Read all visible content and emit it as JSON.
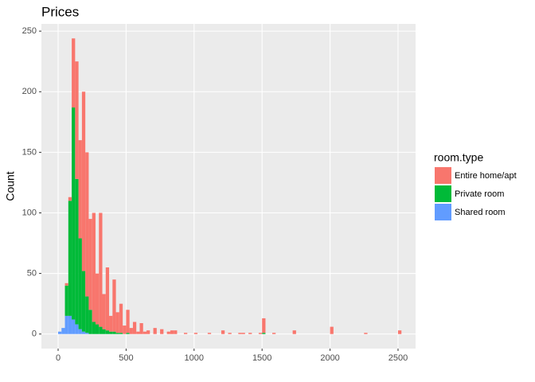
{
  "chart_data": {
    "type": "histogram",
    "title": "Prices",
    "y_label": "Count",
    "legend_title": "room.type",
    "bins": [
      0,
      25,
      50,
      75,
      100,
      125,
      150,
      175,
      200,
      225,
      250,
      275,
      300,
      325,
      350,
      375,
      400,
      425,
      450,
      475,
      500,
      525,
      550,
      575,
      600,
      625,
      650,
      675,
      700,
      725,
      750,
      775,
      800,
      825,
      850,
      875,
      900,
      925,
      950,
      975,
      1000,
      1025,
      1050,
      1075,
      1100,
      1125,
      1150,
      1175,
      1200,
      1225,
      1250,
      1275,
      1300,
      1325,
      1350,
      1375,
      1400,
      1425,
      1450,
      1475,
      1500,
      1525,
      1550,
      1575,
      1600,
      1625,
      1650,
      1675,
      1700,
      1725,
      1750,
      1775,
      1800,
      1825,
      1850,
      1875,
      1900,
      1925,
      1950,
      1975,
      2000,
      2025,
      2050,
      2075,
      2100,
      2125,
      2150,
      2175,
      2200,
      2225,
      2250,
      2275,
      2300,
      2325,
      2350,
      2375,
      2400,
      2425,
      2450,
      2475,
      2500,
      2525
    ],
    "series": [
      {
        "name": "Entire home/apt",
        "color": "#F8766D",
        "values": [
          0,
          0,
          2,
          3,
          57,
          97,
          81,
          148,
          119,
          75,
          90,
          42,
          94,
          29,
          52,
          13,
          43,
          17,
          24,
          7,
          19,
          5,
          10,
          2,
          9,
          2,
          3,
          0,
          5,
          0,
          4,
          0,
          2,
          3,
          3,
          0,
          0,
          1,
          0,
          0,
          1,
          0,
          0,
          0,
          1,
          0,
          0,
          0,
          3,
          0,
          1,
          0,
          0,
          1,
          1,
          0,
          1,
          0,
          0,
          1,
          12,
          0,
          0,
          1,
          0,
          0,
          0,
          0,
          0,
          3,
          0,
          0,
          0,
          0,
          0,
          0,
          0,
          0,
          0,
          0,
          6,
          0,
          0,
          0,
          0,
          0,
          0,
          0,
          0,
          0,
          1,
          0,
          0,
          0,
          0,
          0,
          0,
          0,
          0,
          0,
          3
        ]
      },
      {
        "name": "Private room",
        "color": "#00BA38",
        "values": [
          0,
          0,
          25,
          95,
          175,
          120,
          75,
          50,
          30,
          20,
          10,
          8,
          6,
          4,
          3,
          2,
          2,
          1,
          1,
          0,
          1,
          0,
          0,
          0,
          0,
          0,
          0,
          0,
          0,
          0,
          0,
          0,
          0,
          0,
          0,
          0,
          0,
          0,
          0,
          0,
          0,
          0,
          0,
          0,
          0,
          0,
          0,
          0,
          0,
          0,
          0,
          0,
          0,
          0,
          0,
          0,
          0,
          0,
          0,
          0,
          1,
          0,
          0,
          0,
          0,
          0,
          0,
          0,
          0,
          0,
          0,
          0,
          0,
          0,
          0,
          0,
          0,
          0,
          0,
          0,
          0,
          0,
          0,
          0,
          0,
          0,
          0,
          0,
          0,
          0,
          0,
          0,
          0,
          0,
          0,
          0,
          0,
          0,
          0,
          0,
          0
        ]
      },
      {
        "name": "Shared room",
        "color": "#619CFF",
        "values": [
          2,
          5,
          15,
          15,
          12,
          8,
          4,
          2,
          1,
          0,
          0,
          0,
          0,
          0,
          0,
          0,
          0,
          0,
          0,
          0,
          0,
          0,
          0,
          0,
          0,
          0,
          0,
          0,
          0,
          0,
          0,
          0,
          0,
          0,
          0,
          0,
          0,
          0,
          0,
          0,
          0,
          0,
          0,
          0,
          0,
          0,
          0,
          0,
          0,
          0,
          0,
          0,
          0,
          0,
          0,
          0,
          0,
          0,
          0,
          0,
          0,
          0,
          0,
          0,
          0,
          0,
          0,
          0,
          0,
          0,
          0,
          0,
          0,
          0,
          0,
          0,
          0,
          0,
          0,
          0,
          0,
          0,
          0,
          0,
          0,
          0,
          0,
          0,
          0,
          0,
          0,
          0,
          0,
          0,
          0,
          0,
          0,
          0,
          0,
          0,
          0
        ]
      }
    ],
    "xlim": [
      -123,
      2629
    ],
    "ylim": [
      -12,
      256
    ],
    "xticks": [
      0,
      500,
      1000,
      1500,
      2000,
      2500
    ],
    "yticks": [
      0,
      50,
      100,
      150,
      200,
      250
    ],
    "grid": true
  }
}
